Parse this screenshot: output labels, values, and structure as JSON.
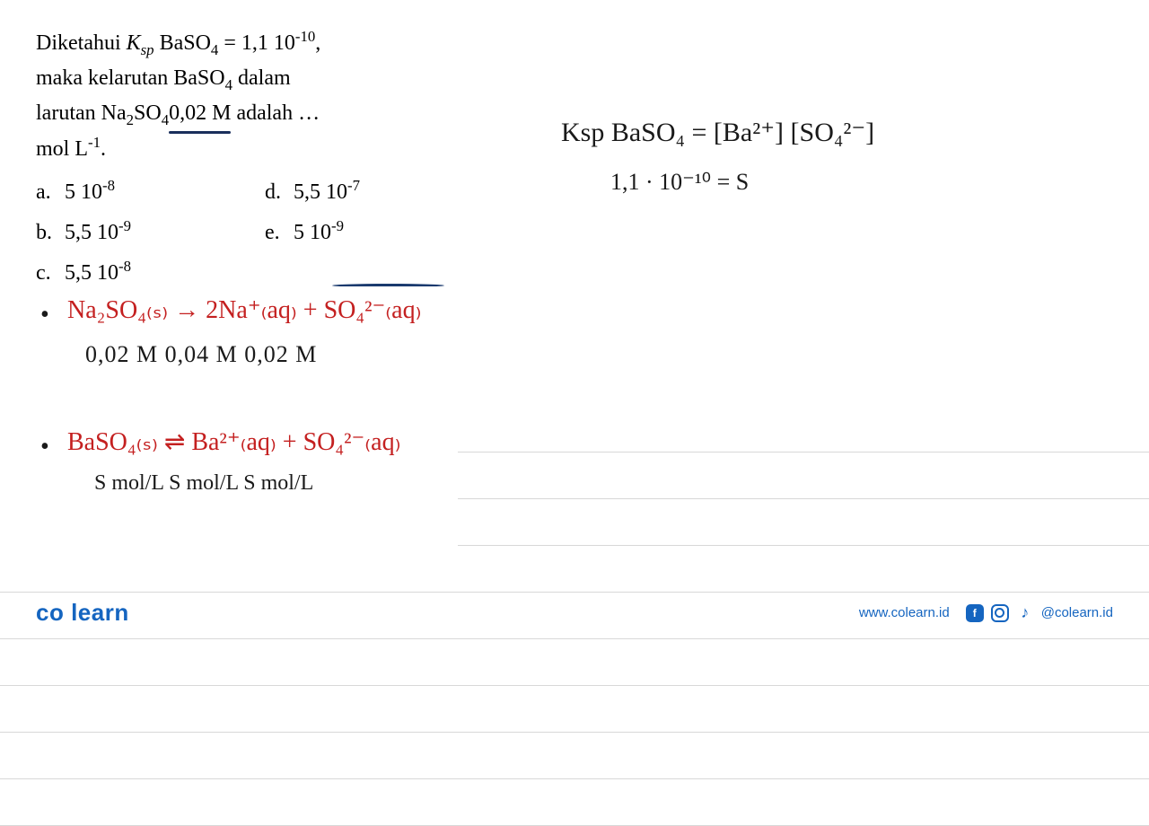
{
  "question": {
    "line1_prefix": "Diketahui ",
    "ksp_var": "K",
    "ksp_sub": "sp",
    "compound": " BaSO",
    "compound_sub": "4",
    "eq_val": " = 1,1   10",
    "exp1": "-10",
    "comma": ",",
    "line2_a": "maka kelarutan BaSO",
    "line2_sub": "4",
    "line2_b": " dalam",
    "line3_a": "larutan Na",
    "line3_sub1": "2",
    "line3_mid": "SO",
    "line3_sub2": "4",
    "line3_val": " 0,02 M",
    "line3_end": " adalah …",
    "line4_a": "mol L",
    "line4_exp": "-1",
    "line4_end": "."
  },
  "options": {
    "a_label": "a.",
    "a_val": "5   10",
    "a_exp": "-8",
    "b_label": "b.",
    "b_val": "5,5   10",
    "b_exp": "-9",
    "c_label": "c.",
    "c_val": "5,5   10",
    "c_exp": "-8",
    "d_label": "d.",
    "d_val": "5,5   10",
    "d_exp": "-7",
    "e_label": "e.",
    "e_val": "5   10",
    "e_exp": "-9"
  },
  "handwriting": {
    "ksp_line": "Ksp BaSO₄ = [Ba²⁺] [SO₄²⁻]",
    "ksp_sub_line": "1,1 · 10⁻¹⁰   =    S",
    "eq1_red": "Na₂SO₄₍ₛ₎ → 2Na⁺₍aq₎ + SO₄²⁻₍aq₎",
    "eq1_vals": "0,02 M         0,04 M      0,02 M",
    "eq2_red": "BaSO₄₍ₛ₎ ⇌  Ba²⁺₍aq₎ + SO₄²⁻₍aq₎",
    "eq2_vals": "S mol/L            S mol/L    S mol/L",
    "bullet": "•"
  },
  "footer": {
    "brand_co": "co",
    "brand_learn": "learn",
    "url": "www.colearn.id",
    "handle": "@colearn.id"
  },
  "colors": {
    "red": "#c42020",
    "black": "#1a1a1a",
    "blue_ink": "#1a3a6e",
    "brand_blue": "#1565c0",
    "rule": "#d8d8d8",
    "bg": "#ffffff"
  },
  "ruled_y": [
    180,
    232,
    284,
    336,
    388,
    440,
    492,
    544,
    596
  ]
}
